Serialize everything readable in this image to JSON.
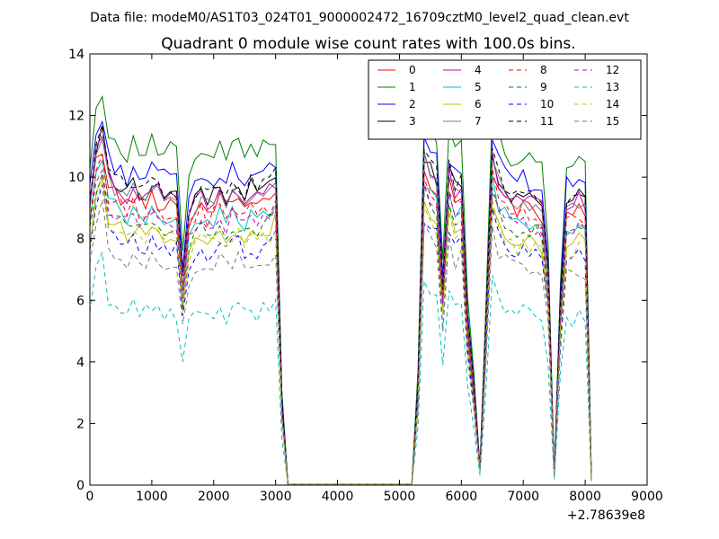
{
  "figure": {
    "suptitle": "Data file: modeM0/AS1T03_024T01_9000002472_16709cztM0_level2_quad_clean.evt",
    "title": "Quadrant 0 module wise count rates with 100.0s bins.",
    "x_offset_label": "+2.78639e8"
  },
  "chart_data": {
    "type": "line",
    "title": "Quadrant 0 module wise count rates with 100.0s bins.",
    "xlabel": "",
    "ylabel": "",
    "xlim": [
      0,
      9000
    ],
    "ylim": [
      0,
      14
    ],
    "x_ticks": [
      "0",
      "1000",
      "2000",
      "3000",
      "4000",
      "5000",
      "6000",
      "7000",
      "8000",
      "9000"
    ],
    "y_ticks": [
      "0",
      "2",
      "4",
      "6",
      "8",
      "10",
      "12",
      "14"
    ],
    "x_offset": "+2.78639e8",
    "grid": false,
    "legend_position": "top-right",
    "legend_columns": 4,
    "x": [
      0,
      100,
      200,
      300,
      400,
      500,
      600,
      700,
      800,
      900,
      1000,
      1100,
      1200,
      1300,
      1400,
      1500,
      1600,
      1700,
      1800,
      1900,
      2000,
      2100,
      2200,
      2300,
      2400,
      2500,
      2600,
      2700,
      2800,
      2900,
      3000,
      3100,
      3200,
      3300,
      3400,
      3500,
      3600,
      3700,
      3800,
      3900,
      4000,
      4100,
      4200,
      4300,
      4400,
      4500,
      4600,
      4700,
      4800,
      4900,
      5000,
      5100,
      5200,
      5300,
      5400,
      5500,
      5600,
      5700,
      5800,
      5900,
      6000,
      6100,
      6200,
      6300,
      6400,
      6500,
      6600,
      6700,
      6800,
      6900,
      7000,
      7100,
      7200,
      7300,
      7400,
      7500,
      7600,
      7700,
      7800,
      7900,
      8000,
      8100
    ],
    "baseline": [
      8.6,
      10.2,
      10.7,
      9.4,
      9.2,
      9.0,
      8.8,
      9.1,
      8.9,
      8.8,
      9.1,
      8.9,
      8.8,
      8.9,
      8.8,
      6.3,
      8.2,
      8.5,
      8.9,
      8.6,
      8.8,
      9.0,
      8.7,
      9.0,
      9.0,
      8.7,
      9.0,
      8.8,
      9.0,
      9.0,
      9.3,
      2.5,
      0.02,
      0.02,
      0.02,
      0.02,
      0.02,
      0.02,
      0.02,
      0.02,
      0.02,
      0.02,
      0.02,
      0.02,
      0.02,
      0.02,
      0.02,
      0.02,
      0.02,
      0.02,
      0.02,
      0.02,
      0.02,
      3.0,
      10.0,
      9.6,
      9.3,
      6.0,
      9.5,
      9.0,
      9.2,
      5.0,
      3.0,
      0.5,
      5.0,
      10.0,
      9.3,
      9.0,
      8.7,
      8.6,
      8.8,
      8.6,
      8.7,
      8.4,
      6.5,
      0.3,
      5.5,
      8.6,
      8.5,
      8.7,
      8.6,
      0.2
    ],
    "series": [
      {
        "name": "0",
        "color": "#ff0000",
        "dash": "solid",
        "offset": 0.3,
        "seed": 1
      },
      {
        "name": "1",
        "color": "#008000",
        "dash": "solid",
        "offset": 2.0,
        "seed": 2
      },
      {
        "name": "2",
        "color": "#0000ff",
        "dash": "solid",
        "offset": 1.2,
        "seed": 3
      },
      {
        "name": "3",
        "color": "#000000",
        "dash": "solid",
        "offset": 0.7,
        "seed": 4
      },
      {
        "name": "4",
        "color": "#bf00bf",
        "dash": "solid",
        "offset": 0.6,
        "seed": 5
      },
      {
        "name": "5",
        "color": "#00bfbf",
        "dash": "solid",
        "offset": -0.2,
        "seed": 6
      },
      {
        "name": "6",
        "color": "#bfbf00",
        "dash": "solid",
        "offset": -0.7,
        "seed": 7
      },
      {
        "name": "7",
        "color": "#7a7a7a",
        "dash": "solid",
        "offset": 0.5,
        "seed": 8
      },
      {
        "name": "8",
        "color": "#ff0000",
        "dash": "dashed",
        "offset": 0.0,
        "seed": 9
      },
      {
        "name": "9",
        "color": "#008000",
        "dash": "dashed",
        "offset": -0.5,
        "seed": 10
      },
      {
        "name": "10",
        "color": "#0000ff",
        "dash": "dashed",
        "offset": -1.2,
        "seed": 11
      },
      {
        "name": "11",
        "color": "#000000",
        "dash": "dashed",
        "offset": 0.8,
        "seed": 12
      },
      {
        "name": "12",
        "color": "#bf00bf",
        "dash": "dashed",
        "offset": -0.3,
        "seed": 13
      },
      {
        "name": "13",
        "color": "#00bfbf",
        "dash": "dashed",
        "offset": -3.3,
        "seed": 14
      },
      {
        "name": "14",
        "color": "#bfbf00",
        "dash": "dashed",
        "offset": -0.9,
        "seed": 15
      },
      {
        "name": "15",
        "color": "#7a7a7a",
        "dash": "dashed",
        "offset": -1.7,
        "seed": 16
      }
    ]
  }
}
